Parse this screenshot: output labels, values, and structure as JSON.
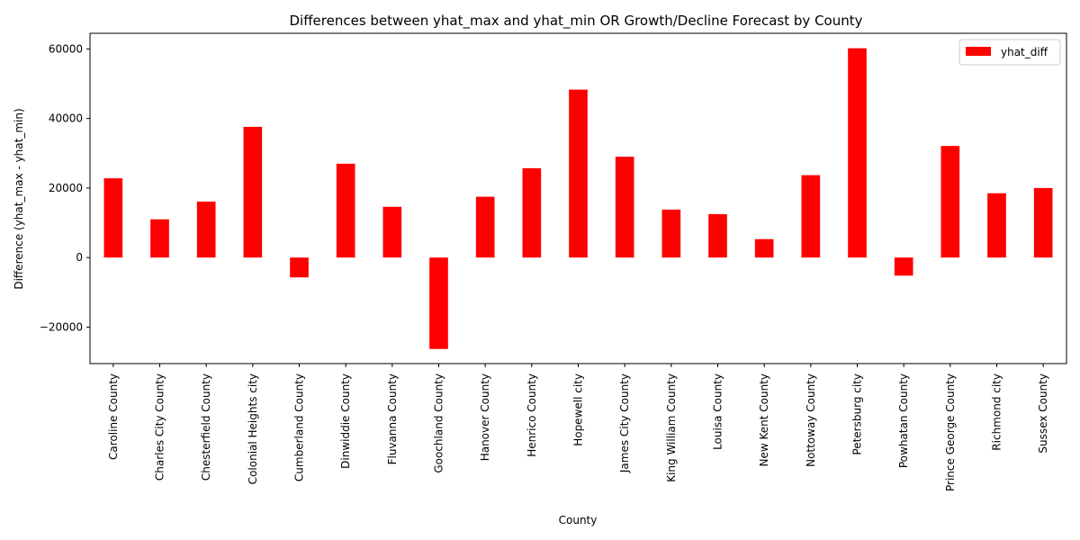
{
  "chart_data": {
    "type": "bar",
    "title": "Differences between yhat_max and yhat_min OR Growth/Decline Forecast by County",
    "xlabel": "County",
    "ylabel": "Difference (yhat_max - yhat_min)",
    "categories": [
      "Caroline County",
      "Charles City County",
      "Chesterfield County",
      "Colonial Heights city",
      "Cumberland County",
      "Dinwiddie County",
      "Fluvanna County",
      "Goochland County",
      "Hanover County",
      "Henrico County",
      "Hopewell city",
      "James City County",
      "King William County",
      "Louisa County",
      "New Kent County",
      "Nottoway County",
      "Petersburg city",
      "Powhatan County",
      "Prince George County",
      "Richmond city",
      "Sussex County"
    ],
    "series": [
      {
        "name": "yhat_diff",
        "color": "#ff0000",
        "values": [
          22800,
          11000,
          16100,
          37600,
          -5700,
          27000,
          14600,
          -26300,
          17500,
          25700,
          48300,
          29000,
          13800,
          12500,
          5300,
          23700,
          60200,
          -5200,
          32100,
          18500,
          20000
        ]
      }
    ],
    "ylim": [
      -30500,
      64500
    ],
    "yticks": [
      -20000,
      0,
      20000,
      40000,
      60000
    ],
    "ytick_labels": [
      "−20000",
      "0",
      "20000",
      "40000",
      "60000"
    ],
    "legend": {
      "position": "top-right"
    },
    "grid": false
  }
}
